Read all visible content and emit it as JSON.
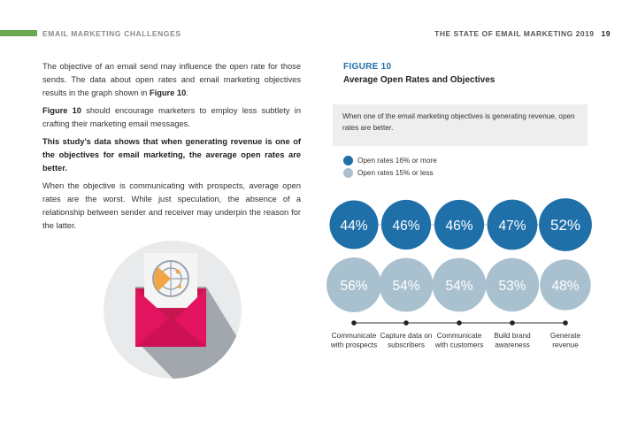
{
  "header": {
    "section": "EMAIL MARKETING CHALLENGES",
    "publication": "THE STATE OF EMAIL MARKETING 2019",
    "page_number": "19"
  },
  "body": {
    "p1_a": "The objective of an email send may influence the open rate for those sends. The data about open rates and email marketing objectives results in the graph shown in ",
    "p1_b": "Figure 10",
    "p1_c": ".",
    "p2_a": "Figure 10",
    "p2_b": " should encourage marketers to employ less subtlety in crafting their marketing email messages.",
    "p3": "This study's data shows that when generating revenue is one of the objectives for email marketing, the average open rates are better.",
    "p4": "When the objective is communicating with prospects, average open rates are the worst. While just speculation, the absence of a relationship between sender and receiver may underpin the reason for the latter."
  },
  "figure": {
    "label": "FIGURE 10",
    "title": "Average Open Rates and Objectives",
    "callout": "When one of the email marketing objectives is generating revenue, open rates are better."
  },
  "colors": {
    "high": "#1f6fa8",
    "low": "#a9c0cf",
    "accent": "#6aa84f"
  },
  "chart_data": {
    "type": "bubble-comparison",
    "categories": [
      [
        "Communicate",
        "with prospects"
      ],
      [
        "Capture data on",
        "subscribers"
      ],
      [
        "Communicate",
        "with customers"
      ],
      [
        "Build brand",
        "awareness"
      ],
      [
        "Generate",
        "revenue"
      ]
    ],
    "series": [
      {
        "name": "Open rates 16% or more",
        "values": [
          44,
          46,
          46,
          47,
          52
        ],
        "labels": [
          "44%",
          "46%",
          "46%",
          "47%",
          "52%"
        ]
      },
      {
        "name": "Open rates 15% or less",
        "values": [
          56,
          54,
          54,
          53,
          48
        ],
        "labels": [
          "56%",
          "54%",
          "54%",
          "53%",
          "48%"
        ]
      }
    ]
  }
}
